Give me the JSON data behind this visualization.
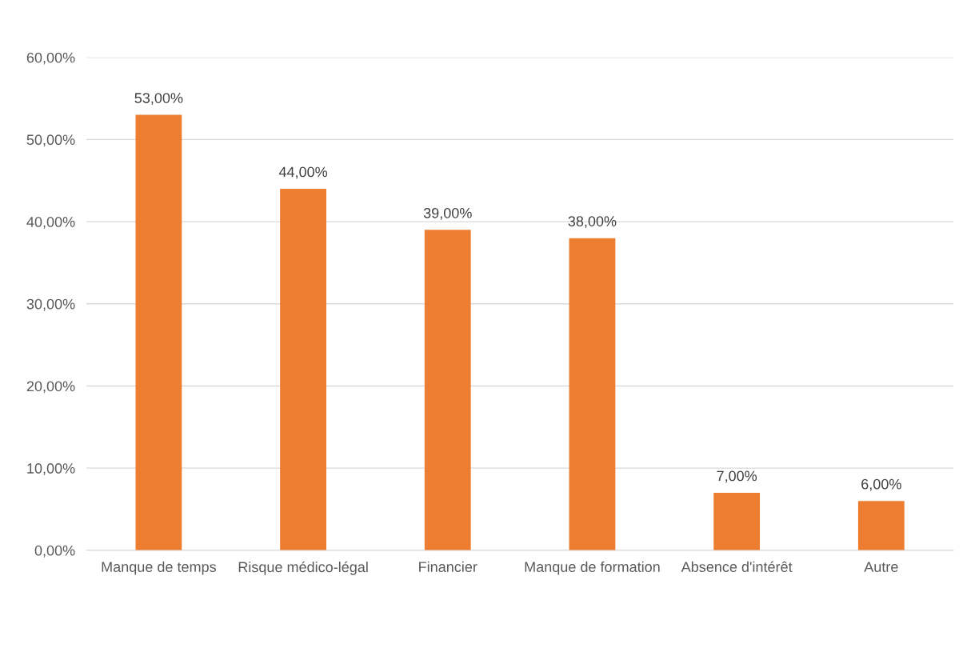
{
  "chart_data": {
    "type": "bar",
    "categories": [
      "Manque de temps",
      "Risque médico-légal",
      "Financier",
      "Manque de formation",
      "Absence d'intérêt",
      "Autre"
    ],
    "values": [
      53,
      44,
      39,
      38,
      7,
      6
    ],
    "value_labels": [
      "53,00%",
      "44,00%",
      "39,00%",
      "38,00%",
      "7,00%",
      "6,00%"
    ],
    "color": "#ed7d31",
    "ylim": [
      0,
      60
    ],
    "yticks": [
      {
        "value": 0,
        "label": "0,00%"
      },
      {
        "value": 10,
        "label": "10,00%"
      },
      {
        "value": 20,
        "label": "20,00%"
      },
      {
        "value": 30,
        "label": "30,00%"
      },
      {
        "value": 40,
        "label": "40,00%"
      },
      {
        "value": 50,
        "label": "50,00%"
      },
      {
        "value": 60,
        "label": "60,00%"
      }
    ],
    "grid": "y",
    "legend": false
  }
}
